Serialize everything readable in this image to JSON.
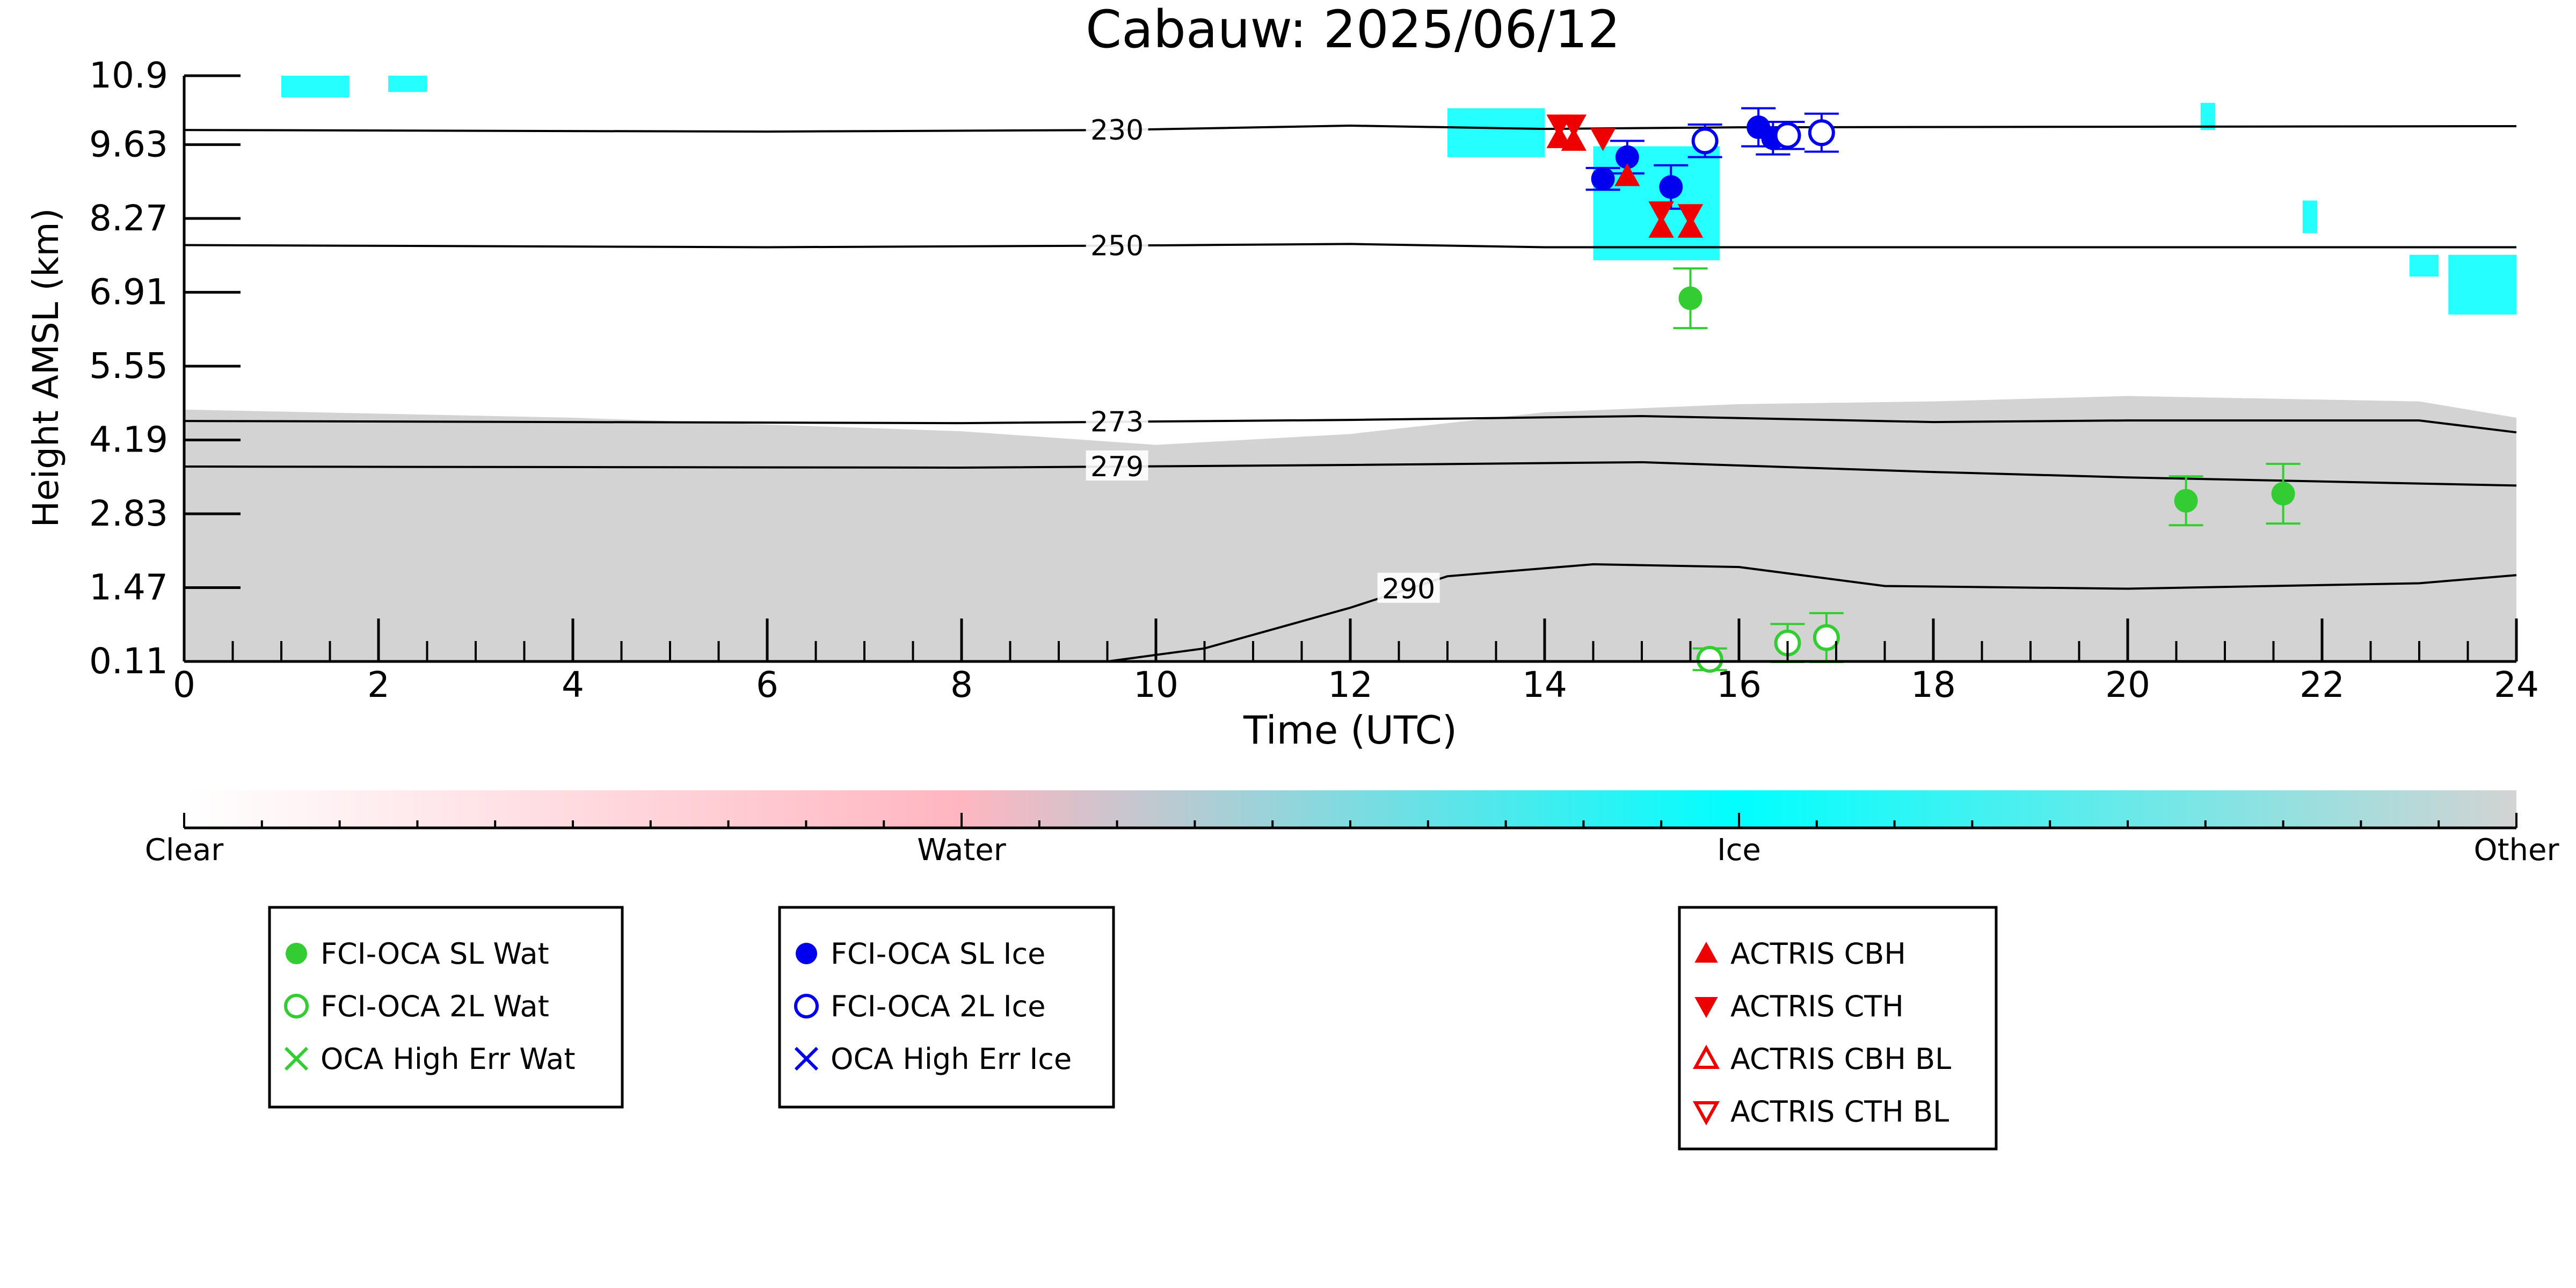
{
  "chart_data": {
    "type": "scatter",
    "title": "Cabauw: 2025/06/12",
    "xlabel": "Time (UTC)",
    "ylabel": "Height AMSL (km)",
    "xlim": [
      0,
      24
    ],
    "ylim": [
      0.11,
      10.9
    ],
    "x_ticks": [
      0,
      2,
      4,
      6,
      8,
      10,
      12,
      14,
      16,
      18,
      20,
      22,
      24
    ],
    "y_ticks": [
      "0.11",
      "1.47",
      "2.83",
      "4.19",
      "5.55",
      "6.91",
      "8.27",
      "9.63",
      "10.9"
    ],
    "grid": false,
    "temperature_contours": [
      {
        "label": "230",
        "label_x": 9.6,
        "points": [
          [
            0,
            9.9
          ],
          [
            6,
            9.87
          ],
          [
            9.6,
            9.9
          ],
          [
            12,
            9.98
          ],
          [
            14,
            9.92
          ],
          [
            16,
            9.95
          ],
          [
            24,
            9.97
          ]
        ]
      },
      {
        "label": "250",
        "label_x": 9.6,
        "points": [
          [
            0,
            7.78
          ],
          [
            6,
            7.74
          ],
          [
            9.6,
            7.77
          ],
          [
            12,
            7.8
          ],
          [
            14,
            7.74
          ],
          [
            16,
            7.74
          ],
          [
            24,
            7.74
          ]
        ]
      },
      {
        "label": "273",
        "label_x": 9.6,
        "points": [
          [
            0,
            4.54
          ],
          [
            8,
            4.5
          ],
          [
            12,
            4.56
          ],
          [
            15,
            4.63
          ],
          [
            18,
            4.52
          ],
          [
            20,
            4.55
          ],
          [
            23,
            4.55
          ],
          [
            24,
            4.33
          ]
        ]
      },
      {
        "label": "279",
        "label_x": 9.6,
        "points": [
          [
            0,
            3.7
          ],
          [
            8,
            3.68
          ],
          [
            12,
            3.73
          ],
          [
            15,
            3.78
          ],
          [
            18,
            3.6
          ],
          [
            20,
            3.5
          ],
          [
            24,
            3.35
          ]
        ]
      },
      {
        "label": "290",
        "label_x": 12.6,
        "points": [
          [
            9.5,
            0.11
          ],
          [
            10.5,
            0.35
          ],
          [
            11.5,
            0.85
          ],
          [
            12,
            1.1
          ],
          [
            13,
            1.68
          ],
          [
            14.5,
            1.9
          ],
          [
            16,
            1.85
          ],
          [
            17.5,
            1.5
          ],
          [
            20,
            1.45
          ],
          [
            23,
            1.55
          ],
          [
            24,
            1.7
          ]
        ]
      }
    ],
    "series": [
      {
        "name": "FCI-OCA SL Wat",
        "marker": "filled-circle",
        "color": "#33cc33",
        "points": [
          {
            "x": 15.5,
            "y": 6.8,
            "err": 0.55
          },
          {
            "x": 20.6,
            "y": 3.07,
            "err": 0.45
          },
          {
            "x": 21.6,
            "y": 3.2,
            "err": 0.55
          }
        ]
      },
      {
        "name": "FCI-OCA 2L Wat",
        "marker": "open-circle",
        "color": "#33cc33",
        "points": [
          {
            "x": 15.7,
            "y": 0.15,
            "err": 0.2
          },
          {
            "x": 16.5,
            "y": 0.45,
            "err": 0.35
          },
          {
            "x": 16.9,
            "y": 0.55,
            "err": 0.45
          }
        ]
      },
      {
        "name": "OCA High Err Wat",
        "marker": "x",
        "color": "#33cc33",
        "points": []
      },
      {
        "name": "FCI-OCA SL Ice",
        "marker": "filled-circle",
        "color": "#0000ee",
        "points": [
          {
            "x": 14.6,
            "y": 9.0,
            "err": 0.2
          },
          {
            "x": 14.85,
            "y": 9.4,
            "err": 0.3
          },
          {
            "x": 15.3,
            "y": 8.85,
            "err": 0.4
          },
          {
            "x": 16.2,
            "y": 9.95,
            "err": 0.35
          },
          {
            "x": 16.35,
            "y": 9.75,
            "err": 0.3
          }
        ]
      },
      {
        "name": "FCI-OCA 2L Ice",
        "marker": "open-circle",
        "color": "#0000ee",
        "points": [
          {
            "x": 15.65,
            "y": 9.7,
            "err": 0.3
          },
          {
            "x": 16.5,
            "y": 9.8,
            "err": 0.25
          },
          {
            "x": 16.85,
            "y": 9.85,
            "err": 0.35
          }
        ]
      },
      {
        "name": "OCA High Err Ice",
        "marker": "x",
        "color": "#0000ee",
        "points": []
      },
      {
        "name": "ACTRIS CBH",
        "marker": "triangle-up",
        "color": "#ee0000",
        "points": [
          {
            "x": 14.15,
            "y": 9.75
          },
          {
            "x": 14.3,
            "y": 9.7
          },
          {
            "x": 14.85,
            "y": 9.05
          },
          {
            "x": 15.2,
            "y": 8.1
          },
          {
            "x": 15.5,
            "y": 8.1
          }
        ]
      },
      {
        "name": "ACTRIS CTH",
        "marker": "triangle-down",
        "color": "#ee0000",
        "points": [
          {
            "x": 14.15,
            "y": 10.0
          },
          {
            "x": 14.3,
            "y": 10.0
          },
          {
            "x": 14.6,
            "y": 9.75
          },
          {
            "x": 15.2,
            "y": 8.4
          },
          {
            "x": 15.5,
            "y": 8.35
          }
        ]
      },
      {
        "name": "ACTRIS CBH BL",
        "marker": "open-triangle-up",
        "color": "#ee0000",
        "points": []
      },
      {
        "name": "ACTRIS CTH BL",
        "marker": "open-triangle-down",
        "color": "#ee0000",
        "points": []
      }
    ],
    "colorbar": {
      "labels": [
        "Clear",
        "Water",
        "Ice",
        "Other"
      ],
      "colors": [
        "#ffffff",
        "#ffb6c1",
        "#00ffff",
        "#d3d3d3"
      ]
    },
    "legend_groups": [
      [
        "FCI-OCA SL Wat",
        "FCI-OCA 2L Wat",
        "OCA High Err Wat"
      ],
      [
        "FCI-OCA SL Ice",
        "FCI-OCA 2L Ice",
        "OCA High Err Ice"
      ],
      [
        "ACTRIS CBH",
        "ACTRIS CTH",
        "ACTRIS CBH BL",
        "ACTRIS CTH BL"
      ]
    ],
    "legend_placement": "bottom",
    "background_classification": {
      "other_regions": [
        {
          "x0": 0,
          "x1": 24,
          "top": [
            [
              0,
              4.75
            ],
            [
              4,
              4.6
            ],
            [
              8,
              4.35
            ],
            [
              10,
              4.1
            ],
            [
              12,
              4.3
            ],
            [
              14,
              4.7
            ],
            [
              16,
              4.85
            ],
            [
              18,
              4.9
            ],
            [
              20,
              5.0
            ],
            [
              23,
              4.9
            ],
            [
              24,
              4.6
            ]
          ],
          "bottom": 0.11
        }
      ],
      "ice_regions": [
        {
          "x0": 1.0,
          "x1": 1.7,
          "y0": 10.5,
          "y1": 10.9
        },
        {
          "x0": 2.1,
          "x1": 2.5,
          "y0": 10.6,
          "y1": 10.9
        },
        {
          "x0": 13.0,
          "x1": 14.0,
          "y0": 9.4,
          "y1": 10.3
        },
        {
          "x0": 14.5,
          "x1": 15.8,
          "y0": 7.5,
          "y1": 9.6
        },
        {
          "x0": 20.75,
          "x1": 20.9,
          "y0": 9.9,
          "y1": 10.4
        },
        {
          "x0": 21.8,
          "x1": 21.95,
          "y0": 8.0,
          "y1": 8.6
        },
        {
          "x0": 22.9,
          "x1": 23.2,
          "y0": 7.2,
          "y1": 7.6
        },
        {
          "x0": 23.3,
          "x1": 24,
          "y0": 6.5,
          "y1": 7.6
        }
      ]
    }
  }
}
